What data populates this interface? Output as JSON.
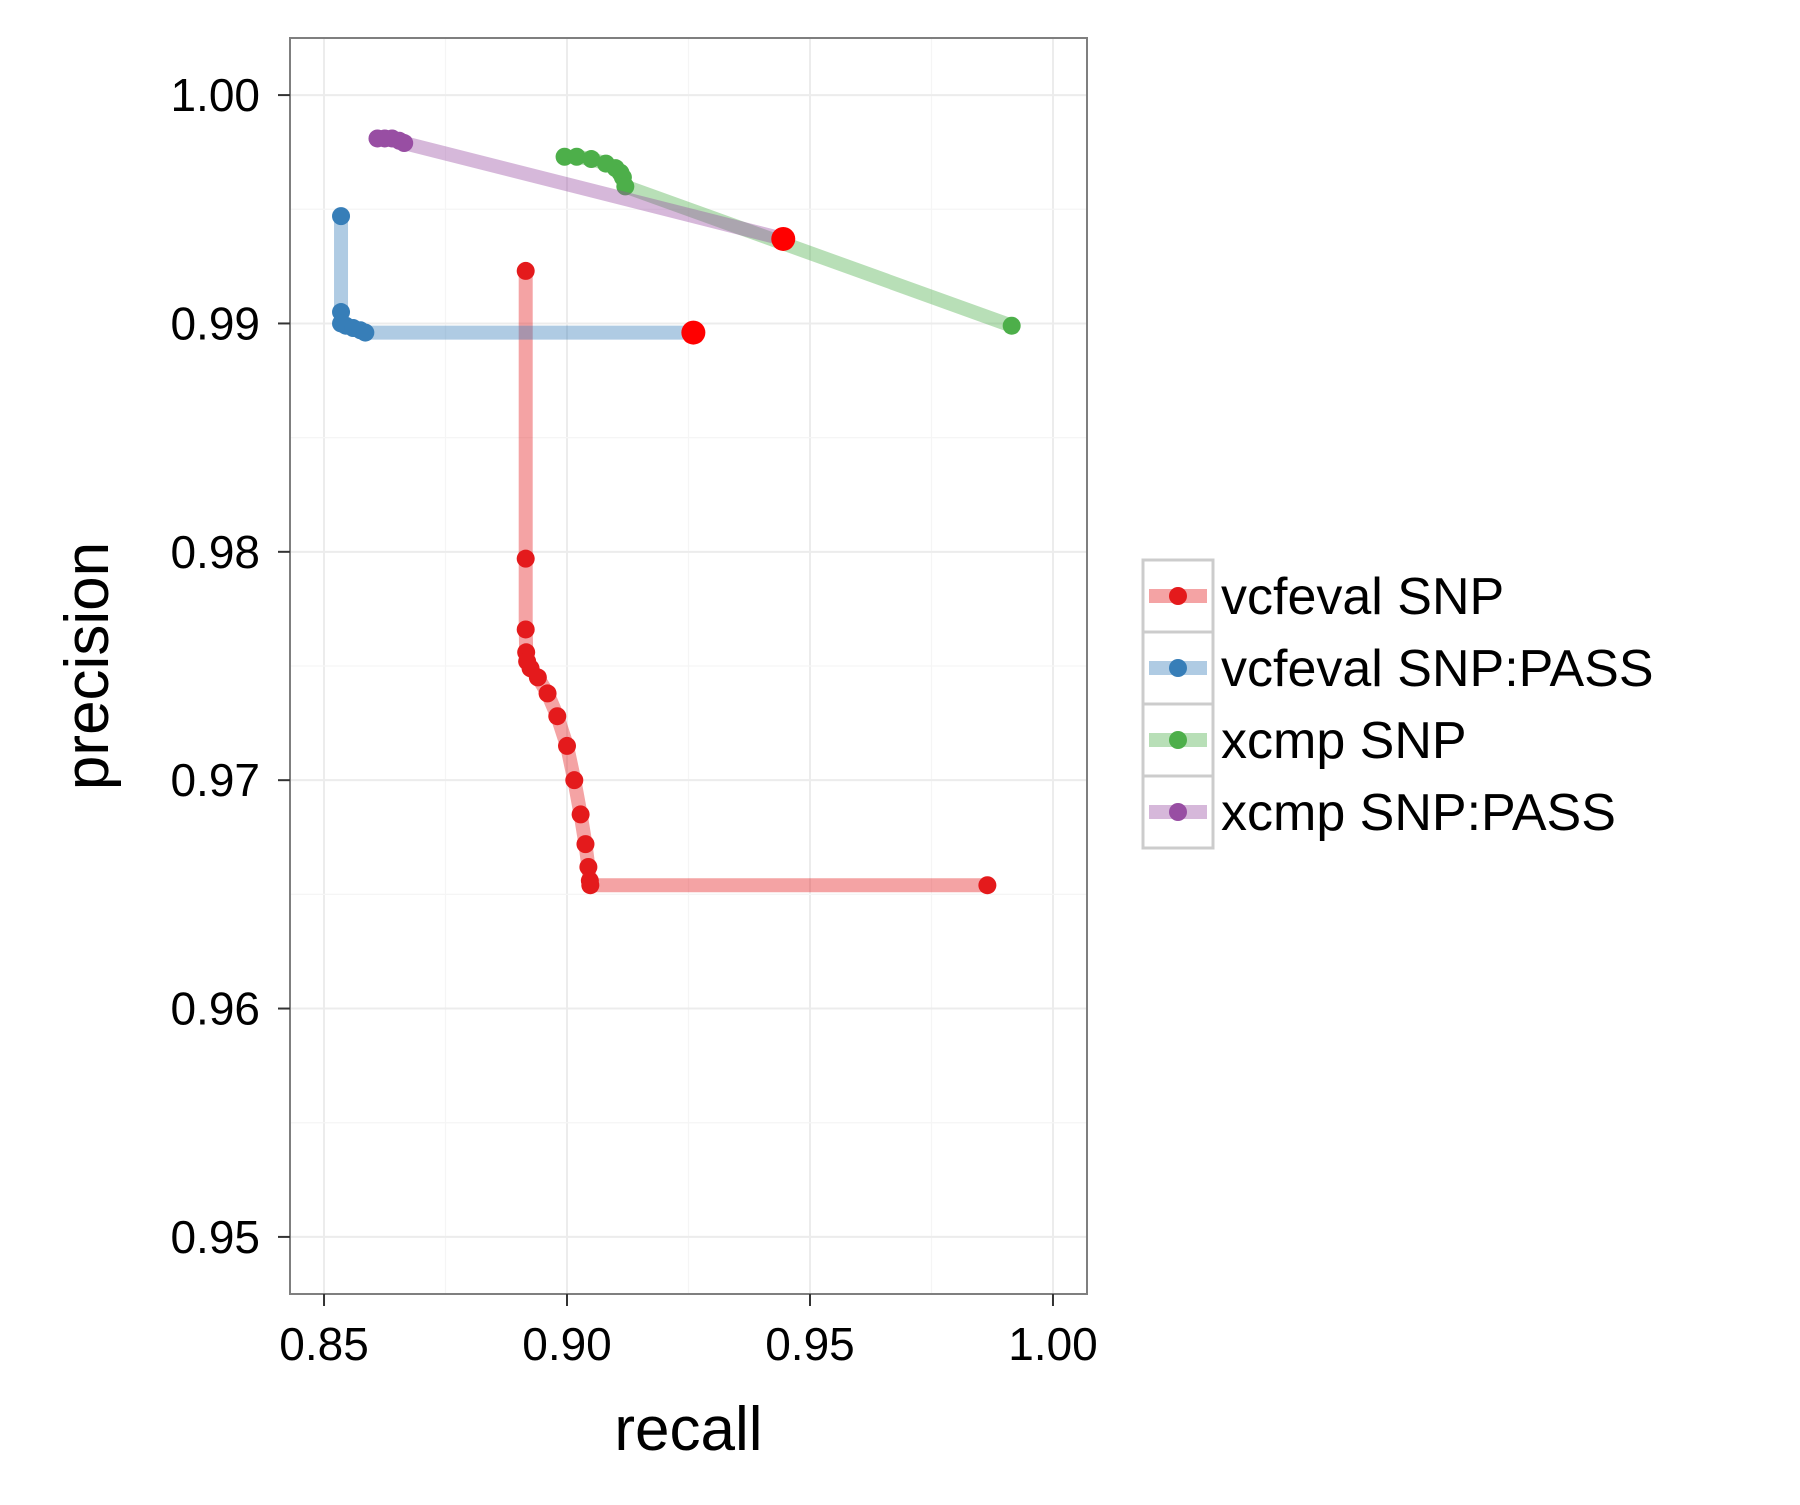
{
  "chart_data": {
    "type": "line",
    "title": "",
    "xlabel": "recall",
    "ylabel": "precision",
    "xlim": [
      0.843,
      1.007
    ],
    "ylim": [
      0.9475,
      1.0025
    ],
    "x_ticks": [
      0.85,
      0.9,
      0.95,
      1.0
    ],
    "x_tick_labels": [
      "0.85",
      "0.90",
      "0.95",
      "1.00"
    ],
    "y_ticks": [
      0.95,
      0.96,
      0.97,
      0.98,
      0.99,
      1.0
    ],
    "y_tick_labels": [
      "0.95",
      "0.96",
      "0.97",
      "0.98",
      "0.99",
      "1.00"
    ],
    "grid": true,
    "legend_position": "right",
    "series": [
      {
        "name": "vcfeval SNP",
        "color": "#e41a1c",
        "x": [
          0.8915,
          0.8915,
          0.8915,
          0.8916,
          0.8918,
          0.8925,
          0.894,
          0.896,
          0.898,
          0.9,
          0.9015,
          0.9028,
          0.9038,
          0.9044,
          0.9047,
          0.9048,
          0.9865
        ],
        "y": [
          0.9923,
          0.9797,
          0.9766,
          0.9756,
          0.9752,
          0.9749,
          0.9745,
          0.9738,
          0.9728,
          0.9715,
          0.97,
          0.9685,
          0.9672,
          0.9662,
          0.9656,
          0.9654,
          0.9654
        ],
        "emphasis_point": {
          "x": 0.9445,
          "y": 0.9937
        }
      },
      {
        "name": "vcfeval SNP:PASS",
        "color": "#377eb8",
        "x": [
          0.8535,
          0.8535,
          0.8535,
          0.8545,
          0.856,
          0.8575,
          0.8585,
          0.926
        ],
        "y": [
          0.9947,
          0.9905,
          0.99,
          0.9899,
          0.9898,
          0.9897,
          0.9896,
          0.9896
        ],
        "emphasis_point": {
          "x": 0.926,
          "y": 0.9896
        }
      },
      {
        "name": "xcmp SNP",
        "color": "#4daf4a",
        "x": [
          0.8995,
          0.902,
          0.905,
          0.908,
          0.91,
          0.911,
          0.9115,
          0.912,
          0.9915
        ],
        "y": [
          0.9973,
          0.9973,
          0.9972,
          0.997,
          0.9968,
          0.9966,
          0.9964,
          0.996,
          0.9899
        ],
        "emphasis_point": null
      },
      {
        "name": "xcmp SNP:PASS",
        "color": "#984ea3",
        "x": [
          0.861,
          0.8625,
          0.864,
          0.8655,
          0.8665,
          0.9445
        ],
        "y": [
          0.9981,
          0.9981,
          0.9981,
          0.998,
          0.9979,
          0.9937
        ],
        "emphasis_point": null
      }
    ]
  }
}
